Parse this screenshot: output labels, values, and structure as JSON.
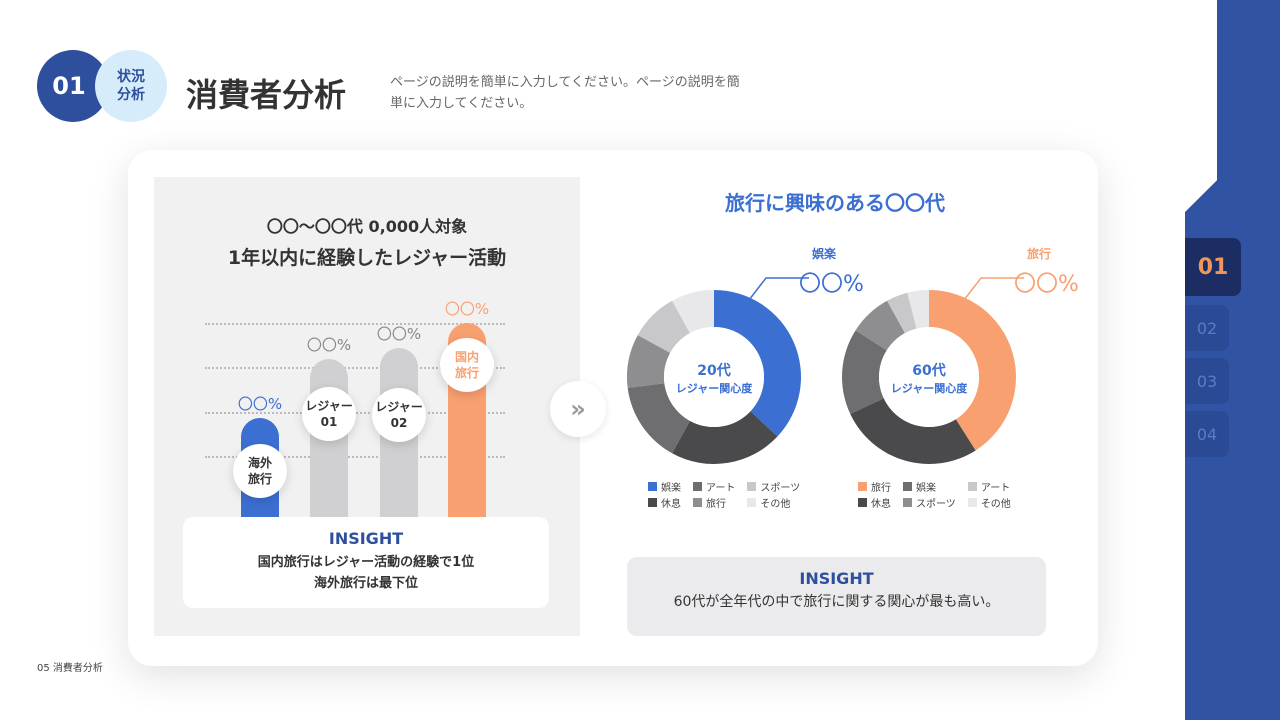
{
  "header": {
    "number": "01",
    "section": "状況\n分析",
    "title": "消費者分析",
    "description": "ページの説明を簡単に入力してください。ページの説明を簡単に入力してください。"
  },
  "left": {
    "title_line1": "〇〇～〇〇代 0,000人対象",
    "title_line2": "1年以内に経験したレジャー活動",
    "bars": [
      {
        "label": "海外\n旅行",
        "value_text": "〇〇%",
        "value": 45,
        "color": "#3b6fd1"
      },
      {
        "label": "レジャー\n01",
        "value_text": "〇〇%",
        "value": 72,
        "color": "#d0d0d3"
      },
      {
        "label": "レジャー\n02",
        "value_text": "〇〇%",
        "value": 77,
        "color": "#d0d0d3"
      },
      {
        "label": "国内\n旅行",
        "value_text": "〇〇%",
        "value": 88,
        "color": "#f9a070"
      }
    ],
    "insight_heading": "INSIGHT",
    "insight_line1": "国内旅行はレジャー活動の経験で1位",
    "insight_line2": "海外旅行は最下位"
  },
  "right": {
    "title": "旅行に興味のある〇〇代",
    "insight_heading": "INSIGHT",
    "insight_text": "60代が全年代の中で旅行に関する関心が最も高い。"
  },
  "chart_data": [
    {
      "type": "pie",
      "donut": true,
      "center_line1": "20代",
      "center_line2": "レジャー関心度",
      "callout_label": "娯楽",
      "callout_value": "〇〇%",
      "accent": "#3b6fd1",
      "slices": [
        {
          "name": "娯楽",
          "value": 37,
          "color": "#3b6fd1"
        },
        {
          "name": "休息",
          "value": 21,
          "color": "#4a4a4c"
        },
        {
          "name": "アート",
          "value": 15,
          "color": "#6e6e70"
        },
        {
          "name": "旅行",
          "value": 10,
          "color": "#8e8e90"
        },
        {
          "name": "スポーツ",
          "value": 9,
          "color": "#c8c8ca"
        },
        {
          "name": "その他",
          "value": 8,
          "color": "#e8e8ea"
        }
      ],
      "legend": [
        "娯楽",
        "アート",
        "スポーツ",
        "休息",
        "旅行",
        "その他"
      ]
    },
    {
      "type": "pie",
      "donut": true,
      "center_line1": "60代",
      "center_line2": "レジャー関心度",
      "callout_label": "旅行",
      "callout_value": "〇〇%",
      "accent": "#f9a070",
      "slices": [
        {
          "name": "旅行",
          "value": 41,
          "color": "#f9a070"
        },
        {
          "name": "休息",
          "value": 27,
          "color": "#4a4a4c"
        },
        {
          "name": "娯楽",
          "value": 16,
          "color": "#6e6e70"
        },
        {
          "name": "スポーツ",
          "value": 8,
          "color": "#8e8e90"
        },
        {
          "name": "アート",
          "value": 4,
          "color": "#c8c8ca"
        },
        {
          "name": "その他",
          "value": 4,
          "color": "#e8e8ea"
        }
      ],
      "legend": [
        "旅行",
        "娯楽",
        "アート",
        "休息",
        "スポーツ",
        "その他"
      ]
    }
  ],
  "nav": {
    "items": [
      "01",
      "02",
      "03",
      "04"
    ],
    "active": "01",
    "active_color": "#f0965a"
  },
  "footer": "05 消費者分析"
}
